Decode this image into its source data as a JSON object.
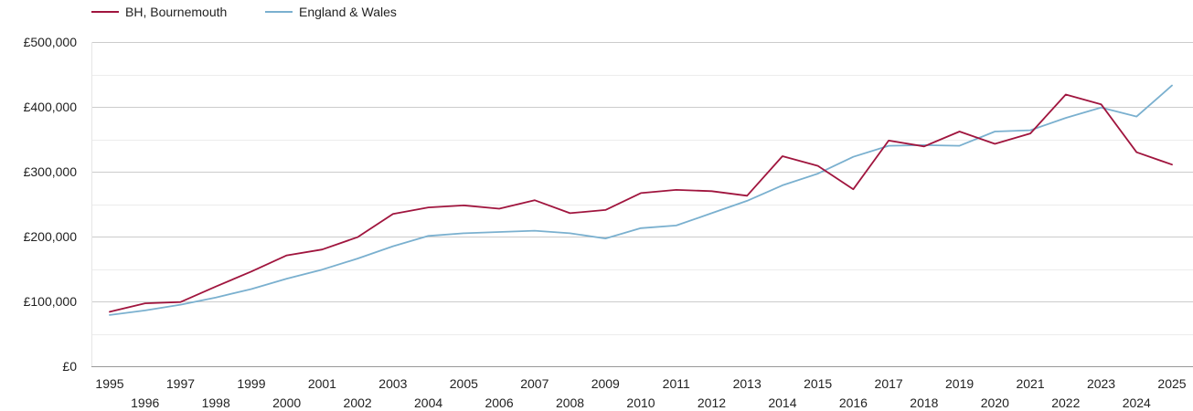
{
  "chart_data": {
    "type": "line",
    "title": "",
    "xlabel": "",
    "ylabel": "",
    "x": [
      1995,
      1996,
      1997,
      1998,
      1999,
      2000,
      2001,
      2002,
      2003,
      2004,
      2005,
      2006,
      2007,
      2008,
      2009,
      2010,
      2011,
      2012,
      2013,
      2014,
      2015,
      2016,
      2017,
      2018,
      2019,
      2020,
      2021,
      2022,
      2023,
      2024,
      2025
    ],
    "x_tick_labels": [
      "1995",
      "1996",
      "1997",
      "1998",
      "1999",
      "2000",
      "2001",
      "2002",
      "2003",
      "2004",
      "2005",
      "2006",
      "2007",
      "2008",
      "2009",
      "2010",
      "2011",
      "2012",
      "2013",
      "2014",
      "2015",
      "2016",
      "2017",
      "2018",
      "2019",
      "2020",
      "2021",
      "2022",
      "2023",
      "2024",
      "2025"
    ],
    "ylim": [
      0,
      500000
    ],
    "y_ticks": [
      0,
      100000,
      200000,
      300000,
      400000,
      500000
    ],
    "y_tick_labels": [
      "£0",
      "£100,000",
      "£200,000",
      "£300,000",
      "£400,000",
      "£500,000"
    ],
    "minor_grid": true,
    "legend_position": "top-left",
    "series": [
      {
        "name": "BH, Bournemouth",
        "color": "#a0153e",
        "values": [
          84000,
          97000,
          99000,
          123000,
          146000,
          171000,
          180000,
          199000,
          235000,
          245000,
          248000,
          243000,
          256000,
          236000,
          241000,
          267000,
          272000,
          270000,
          263000,
          324000,
          309000,
          273000,
          348000,
          339000,
          362000,
          343000,
          359000,
          419000,
          404000,
          330000,
          311000
        ]
      },
      {
        "name": "England & Wales",
        "color": "#7ab0cf",
        "values": [
          79000,
          86000,
          95000,
          106000,
          119000,
          135000,
          149000,
          166000,
          185000,
          201000,
          205000,
          207000,
          209000,
          205000,
          197000,
          213000,
          217000,
          236000,
          255000,
          279000,
          297000,
          323000,
          340000,
          341000,
          340000,
          362000,
          364000,
          383000,
          399000,
          385000,
          433000
        ]
      }
    ]
  }
}
